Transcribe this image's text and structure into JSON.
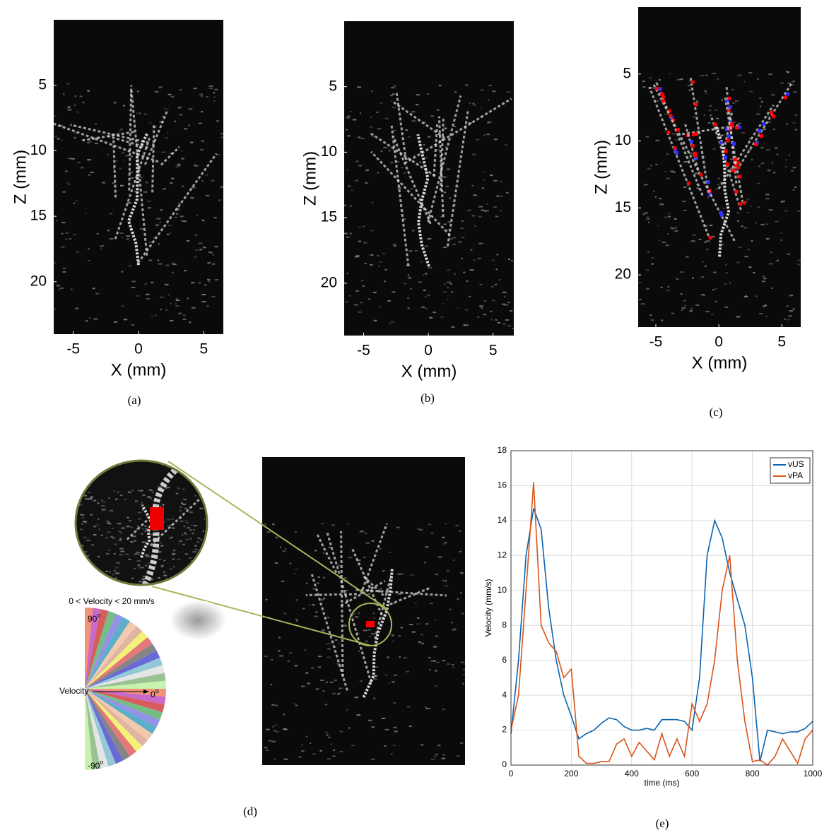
{
  "chart_data": [
    {
      "type": "image",
      "caption": "(a)",
      "xlabel": "X (mm)",
      "ylabel": "Z (mm)",
      "xlim": [
        -6.5,
        6.5
      ],
      "ylim": [
        0,
        24
      ],
      "yreverse": true,
      "xticks": [
        -5,
        0,
        5
      ],
      "yticks": [
        5,
        10,
        15,
        20
      ]
    },
    {
      "type": "image",
      "caption": "(b)",
      "xlabel": "X (mm)",
      "ylabel": "Z (mm)",
      "xlim": [
        -6.5,
        6.6
      ],
      "ylim": [
        0,
        24
      ],
      "yreverse": true,
      "xticks": [
        -5,
        0,
        5
      ],
      "yticks": [
        5,
        10,
        15,
        20
      ]
    },
    {
      "type": "image",
      "caption": "(c)",
      "xlabel": "X (mm)",
      "ylabel": "Z (mm)",
      "xlim": [
        -6.4,
        6.5
      ],
      "ylim": [
        0,
        23.9
      ],
      "yreverse": true,
      "xticks": [
        -5,
        0,
        5
      ],
      "yticks": [
        5,
        10,
        15,
        20
      ]
    },
    {
      "type": "diagram",
      "caption": "(d)",
      "range_label": "0 < Velocity < 20 mm/s",
      "arrow_label": "Velocity",
      "angles": [
        {
          "base": "90",
          "sup": "o"
        },
        {
          "base": "0",
          "sup": "o"
        },
        {
          "base": "-90",
          "sup": "o"
        }
      ]
    },
    {
      "type": "line",
      "caption": "(e)",
      "xlabel": "time (ms)",
      "ylabel": "Velocity (mm/s)",
      "xlim": [
        0,
        1000
      ],
      "ylim": [
        0,
        18
      ],
      "xticks": [
        0,
        200,
        400,
        600,
        800,
        1000
      ],
      "yticks": [
        0,
        2,
        4,
        6,
        8,
        10,
        12,
        14,
        16,
        18
      ],
      "grid": true,
      "legend": "top-right",
      "x": [
        0,
        25,
        50,
        75,
        100,
        125,
        150,
        175,
        200,
        225,
        250,
        275,
        300,
        325,
        350,
        375,
        400,
        425,
        450,
        475,
        500,
        525,
        550,
        575,
        600,
        625,
        650,
        675,
        700,
        725,
        750,
        775,
        800,
        825,
        850,
        875,
        900,
        925,
        950,
        975,
        1000
      ],
      "series": [
        {
          "name": "vUS",
          "color": "#0b64b0",
          "values": [
            1.8,
            6,
            12,
            14.7,
            13.5,
            9,
            6,
            4,
            2.8,
            1.5,
            1.8,
            2.0,
            2.4,
            2.7,
            2.6,
            2.2,
            2.0,
            2.0,
            2.1,
            2.0,
            2.6,
            2.6,
            2.6,
            2.5,
            2.0,
            5,
            12,
            14,
            13,
            11,
            9.5,
            8,
            5,
            0.2,
            2,
            1.9,
            1.8,
            1.9,
            1.9,
            2.1,
            2.5
          ]
        },
        {
          "name": "vPA",
          "color": "#d9541a",
          "values": [
            2,
            4,
            10,
            16.2,
            8,
            7,
            6.5,
            5,
            5.5,
            0.5,
            0.1,
            0.1,
            0.2,
            0.2,
            1.2,
            1.5,
            0.5,
            1.3,
            0.8,
            0.3,
            1.8,
            0.5,
            1.5,
            0.5,
            3.5,
            2.5,
            3.5,
            6,
            10,
            12,
            6,
            2.5,
            0.2,
            0.3,
            0,
            0.5,
            1.5,
            0.8,
            0.1,
            1.5,
            2
          ]
        }
      ]
    }
  ]
}
